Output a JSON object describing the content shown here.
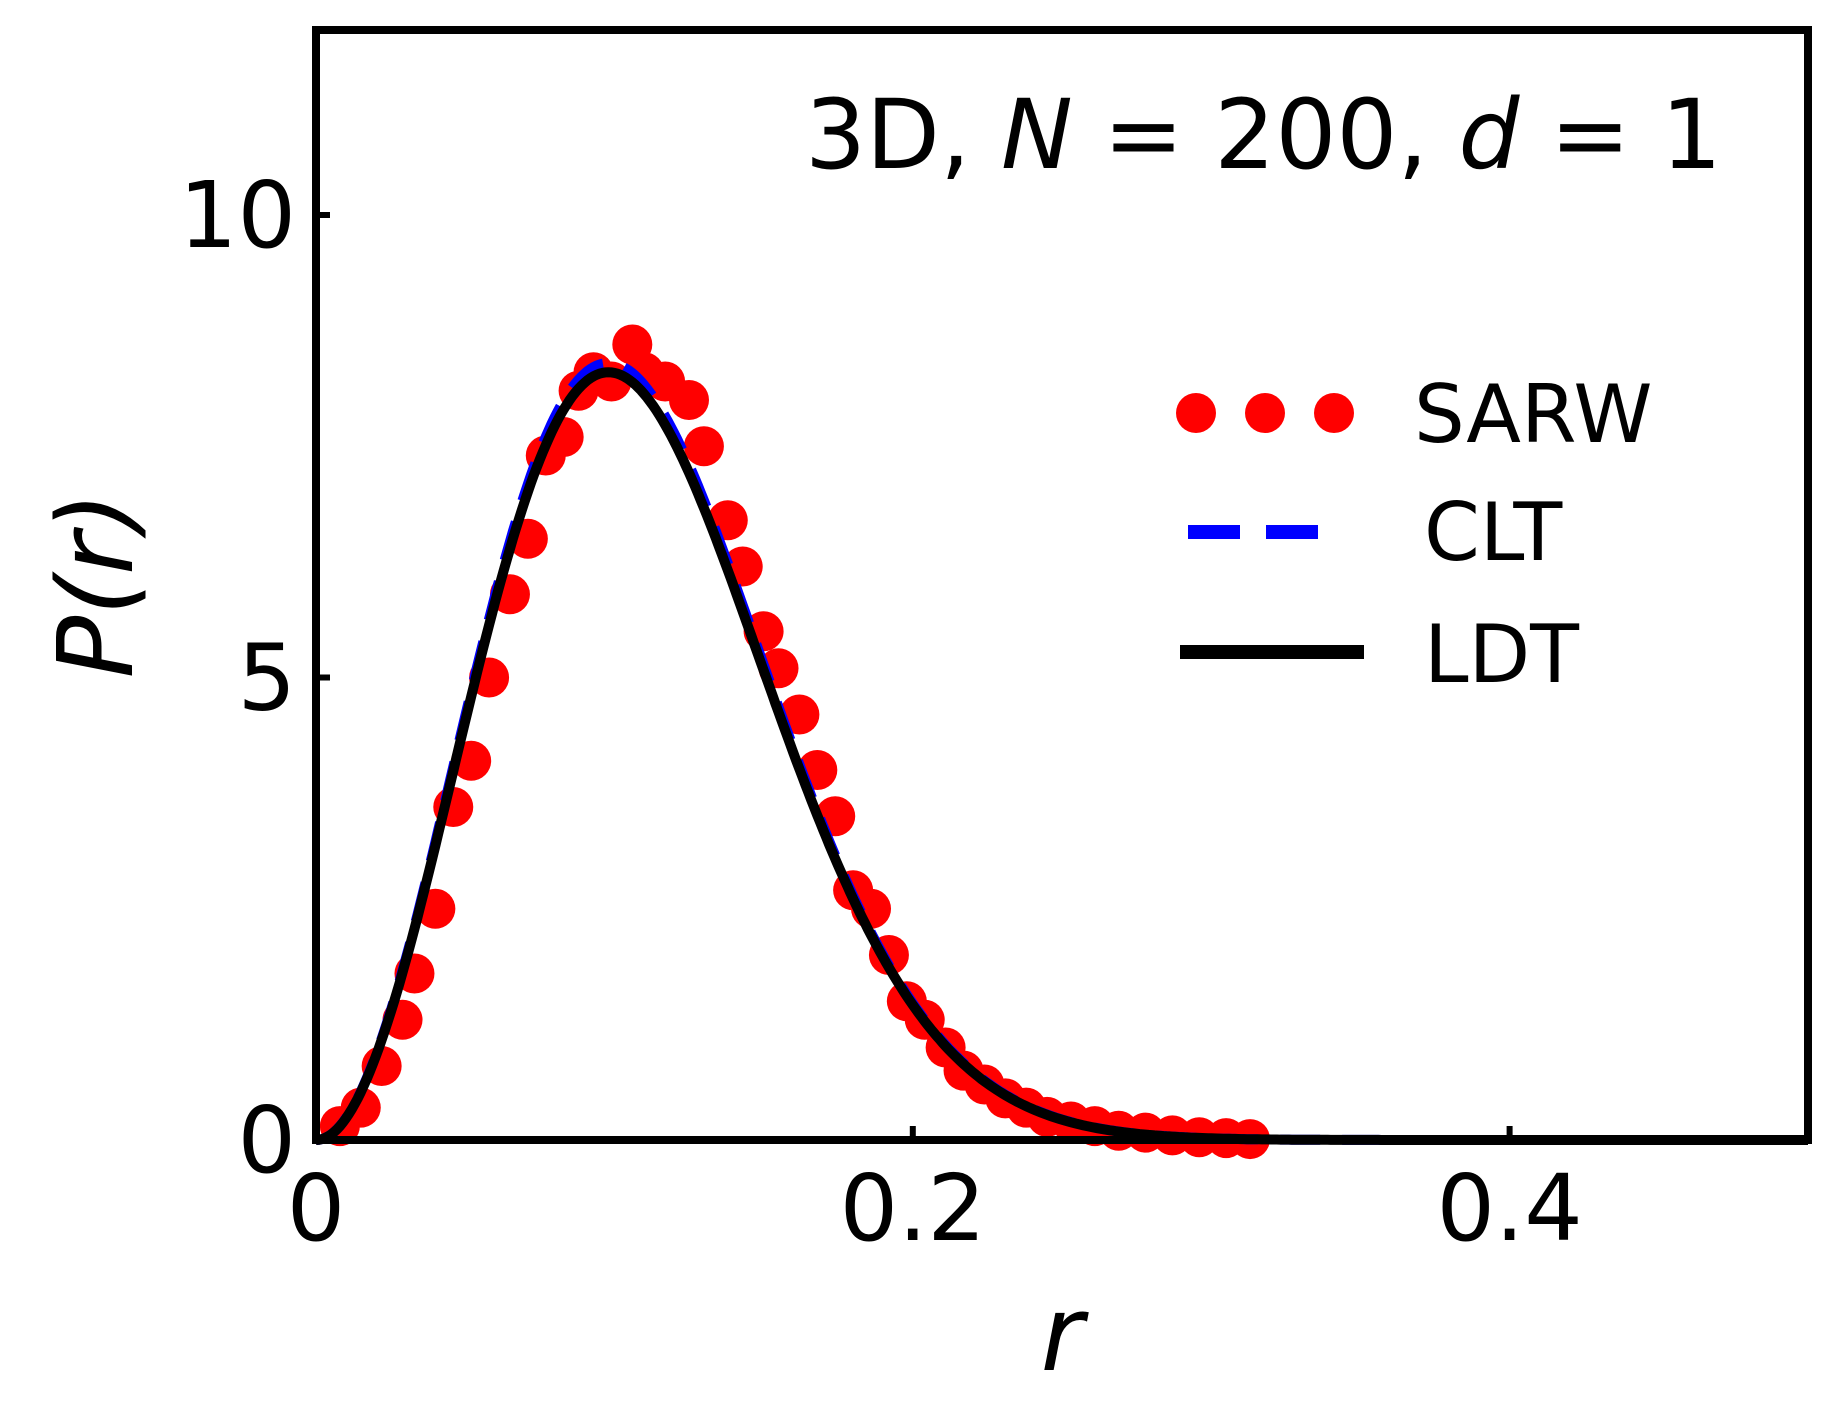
{
  "chart_data": {
    "type": "line",
    "annotation": {
      "prefix": "3D, ",
      "var1": "N",
      "eq1": " = 200, ",
      "var2": "d",
      "eq2": " = 1"
    },
    "xlabel": "r",
    "ylabel": "P(r)",
    "xlim": [
      0,
      0.5
    ],
    "ylim": [
      0,
      12
    ],
    "x_ticks": [
      0,
      0.2,
      0.4
    ],
    "x_tick_labels": [
      "0",
      "0.2",
      "0.4"
    ],
    "y_ticks": [
      0,
      5,
      10
    ],
    "y_tick_labels": [
      "0",
      "5",
      "10"
    ],
    "grid": false,
    "legend_position": "right",
    "series": [
      {
        "name": "SARW",
        "kind": "scatter",
        "color": "#ff0000",
        "points": [
          [
            0.008,
            0.15
          ],
          [
            0.015,
            0.35
          ],
          [
            0.022,
            0.8
          ],
          [
            0.029,
            1.3
          ],
          [
            0.033,
            1.8
          ],
          [
            0.04,
            2.5
          ],
          [
            0.046,
            3.6
          ],
          [
            0.052,
            4.1
          ],
          [
            0.058,
            5.0
          ],
          [
            0.065,
            5.9
          ],
          [
            0.071,
            6.5
          ],
          [
            0.077,
            7.4
          ],
          [
            0.083,
            7.6
          ],
          [
            0.088,
            8.1
          ],
          [
            0.093,
            8.3
          ],
          [
            0.099,
            8.2
          ],
          [
            0.106,
            8.6
          ],
          [
            0.11,
            8.3
          ],
          [
            0.117,
            8.2
          ],
          [
            0.125,
            8.0
          ],
          [
            0.13,
            7.5
          ],
          [
            0.138,
            6.7
          ],
          [
            0.143,
            6.2
          ],
          [
            0.15,
            5.5
          ],
          [
            0.155,
            5.1
          ],
          [
            0.162,
            4.6
          ],
          [
            0.168,
            4.0
          ],
          [
            0.174,
            3.5
          ],
          [
            0.18,
            2.7
          ],
          [
            0.186,
            2.5
          ],
          [
            0.192,
            2.0
          ],
          [
            0.198,
            1.5
          ],
          [
            0.204,
            1.3
          ],
          [
            0.211,
            1.0
          ],
          [
            0.217,
            0.75
          ],
          [
            0.224,
            0.6
          ],
          [
            0.231,
            0.45
          ],
          [
            0.238,
            0.35
          ],
          [
            0.245,
            0.25
          ],
          [
            0.253,
            0.2
          ],
          [
            0.261,
            0.15
          ],
          [
            0.269,
            0.1
          ],
          [
            0.278,
            0.08
          ],
          [
            0.287,
            0.05
          ],
          [
            0.296,
            0.03
          ],
          [
            0.305,
            0.02
          ],
          [
            0.313,
            0.01
          ]
        ]
      },
      {
        "name": "CLT",
        "kind": "line",
        "style": "dashed",
        "color": "#0000ff",
        "curve": {
          "form": "r^2 exp(-(r/r0)^2)",
          "peak_x": 0.098,
          "peak_y": 8.4
        }
      },
      {
        "name": "LDT",
        "kind": "line",
        "style": "solid",
        "color": "#000000",
        "curve": {
          "form": "r^2 exp(-(r/r0)^2)",
          "peak_x": 0.098,
          "peak_y": 8.3
        }
      }
    ]
  }
}
